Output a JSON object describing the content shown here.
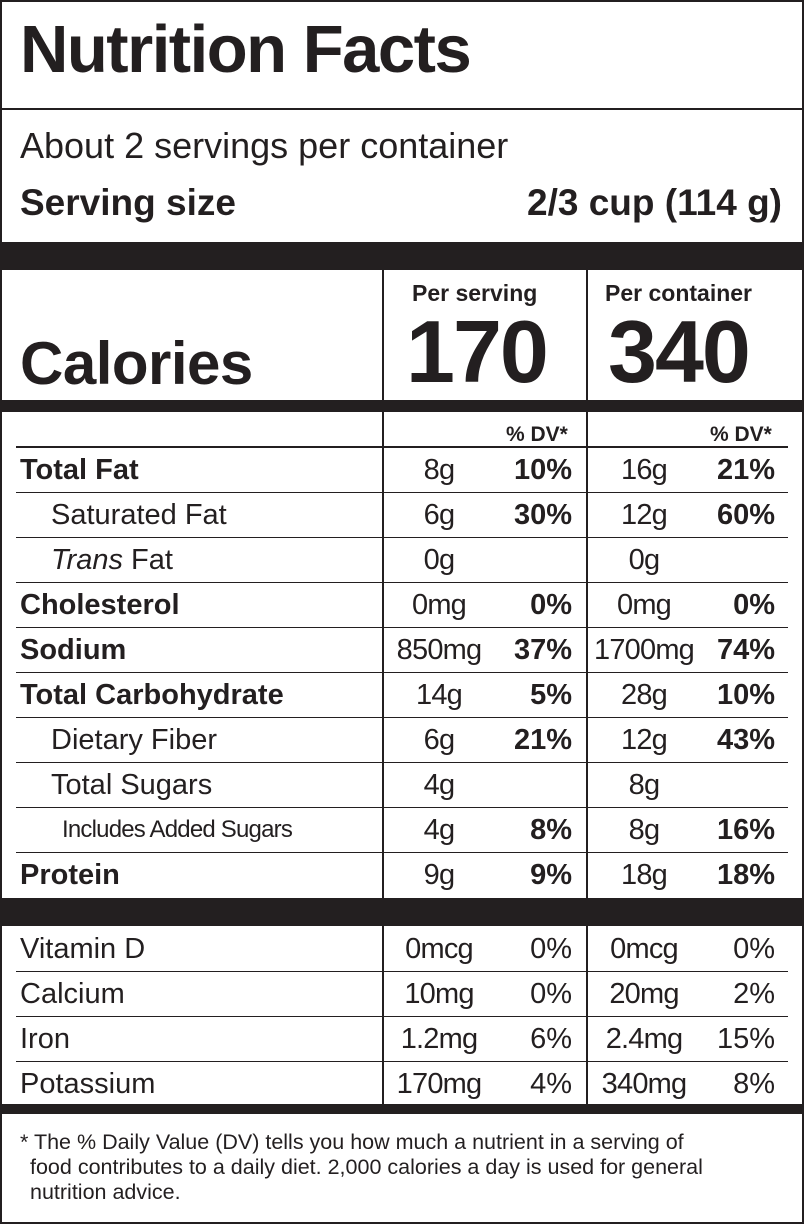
{
  "title": "Nutrition Facts",
  "servings_per_container": "About 2 servings per container",
  "serving_size": {
    "label": "Serving size",
    "value": "2/3 cup (114 g)"
  },
  "columns": {
    "per_serving": "Per serving",
    "per_container": "Per container",
    "dv_header": "% DV*"
  },
  "calories": {
    "label": "Calories",
    "per_serving": "170",
    "per_container": "340"
  },
  "nutrients": [
    {
      "name": "Total Fat",
      "bold": true,
      "indent": 0,
      "serving_amount": "8g",
      "serving_dv": "10%",
      "container_amount": "16g",
      "container_dv": "21%"
    },
    {
      "name": "Saturated Fat",
      "bold": false,
      "indent": 1,
      "serving_amount": "6g",
      "serving_dv": "30%",
      "container_amount": "12g",
      "container_dv": "60%"
    },
    {
      "name_italic": "Trans",
      "name": " Fat",
      "bold": false,
      "indent": 1,
      "serving_amount": "0g",
      "serving_dv": "",
      "container_amount": "0g",
      "container_dv": ""
    },
    {
      "name": "Cholesterol",
      "bold": true,
      "indent": 0,
      "serving_amount": "0mg",
      "serving_dv": "0%",
      "container_amount": "0mg",
      "container_dv": "0%"
    },
    {
      "name": "Sodium",
      "bold": true,
      "indent": 0,
      "serving_amount": "850mg",
      "serving_dv": "37%",
      "container_amount": "1700mg",
      "container_dv": "74%"
    },
    {
      "name": "Total Carbohydrate",
      "bold": true,
      "indent": 0,
      "serving_amount": "14g",
      "serving_dv": "5%",
      "container_amount": "28g",
      "container_dv": "10%"
    },
    {
      "name": "Dietary Fiber",
      "bold": false,
      "indent": 1,
      "serving_amount": "6g",
      "serving_dv": "21%",
      "container_amount": "12g",
      "container_dv": "43%"
    },
    {
      "name": "Total Sugars",
      "bold": false,
      "indent": 1,
      "serving_amount": "4g",
      "serving_dv": "",
      "container_amount": "8g",
      "container_dv": ""
    },
    {
      "name": "Includes Added Sugars",
      "bold": false,
      "indent": 2,
      "serving_amount": "4g",
      "serving_dv": "8%",
      "container_amount": "8g",
      "container_dv": "16%"
    },
    {
      "name": "Protein",
      "bold": true,
      "indent": 0,
      "serving_amount": "9g",
      "serving_dv": "9%",
      "container_amount": "18g",
      "container_dv": "18%"
    }
  ],
  "vitamins": [
    {
      "name": "Vitamin D",
      "serving_amount": "0mcg",
      "serving_dv": "0%",
      "container_amount": "0mcg",
      "container_dv": "0%"
    },
    {
      "name": "Calcium",
      "serving_amount": "10mg",
      "serving_dv": "0%",
      "container_amount": "20mg",
      "container_dv": "2%"
    },
    {
      "name": "Iron",
      "serving_amount": "1.2mg",
      "serving_dv": "6%",
      "container_amount": "2.4mg",
      "container_dv": "15%"
    },
    {
      "name": "Potassium",
      "serving_amount": "170mg",
      "serving_dv": "4%",
      "container_amount": "340mg",
      "container_dv": "8%"
    }
  ],
  "footnote": {
    "line1": "* The % Daily Value (DV) tells you how much a nutrient in a serving of",
    "line2": "food contributes to a daily diet. 2,000 calories a day is used for general",
    "line3": "nutrition advice."
  }
}
